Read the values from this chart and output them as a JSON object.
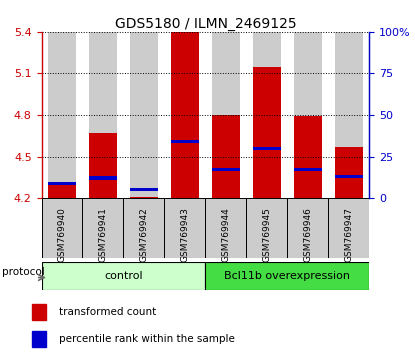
{
  "title": "GDS5180 / ILMN_2469125",
  "samples": [
    "GSM769940",
    "GSM769941",
    "GSM769942",
    "GSM769943",
    "GSM769944",
    "GSM769945",
    "GSM769946",
    "GSM769947"
  ],
  "red_values": [
    4.32,
    4.67,
    4.21,
    5.4,
    4.8,
    5.15,
    4.79,
    4.57
  ],
  "blue_values": [
    4.295,
    4.335,
    4.255,
    4.595,
    4.395,
    4.545,
    4.395,
    4.345
  ],
  "blue_heights": [
    0.022,
    0.022,
    0.022,
    0.022,
    0.022,
    0.022,
    0.022,
    0.022
  ],
  "ymin": 4.2,
  "ymax": 5.4,
  "yticks_red": [
    4.2,
    4.5,
    4.8,
    5.1,
    5.4
  ],
  "yticks_blue": [
    0,
    25,
    50,
    75,
    100
  ],
  "bar_width": 0.7,
  "red_color": "#cc0000",
  "blue_color": "#0000cc",
  "control_label": "control",
  "overexp_label": "Bcl11b overexpression",
  "control_color": "#ccffcc",
  "overexp_color": "#44dd44",
  "protocol_label": "protocol",
  "legend_red": "transformed count",
  "legend_blue": "percentile rank within the sample",
  "bar_bg_color": "#cccccc",
  "title_fontsize": 10
}
